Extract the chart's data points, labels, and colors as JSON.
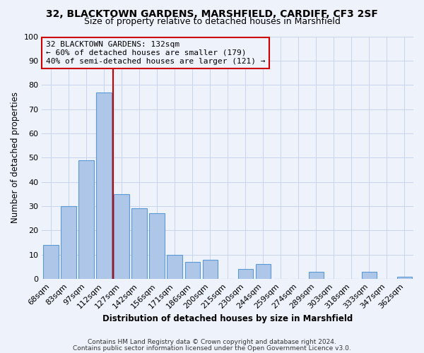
{
  "title1": "32, BLACKTOWN GARDENS, MARSHFIELD, CARDIFF, CF3 2SF",
  "title2": "Size of property relative to detached houses in Marshfield",
  "xlabel": "Distribution of detached houses by size in Marshfield",
  "ylabel": "Number of detached properties",
  "categories": [
    "68sqm",
    "83sqm",
    "97sqm",
    "112sqm",
    "127sqm",
    "142sqm",
    "156sqm",
    "171sqm",
    "186sqm",
    "200sqm",
    "215sqm",
    "230sqm",
    "244sqm",
    "259sqm",
    "274sqm",
    "289sqm",
    "303sqm",
    "318sqm",
    "333sqm",
    "347sqm",
    "362sqm"
  ],
  "values": [
    14,
    30,
    49,
    77,
    35,
    29,
    27,
    10,
    7,
    8,
    0,
    4,
    6,
    0,
    0,
    3,
    0,
    0,
    3,
    0,
    1
  ],
  "bar_color": "#aec6e8",
  "bar_edge_color": "#5b9bd5",
  "bg_color": "#eef2fb",
  "grid_color": "#c8d4ee",
  "marker_line_color": "#cc0000",
  "annotation_line0": "32 BLACKTOWN GARDENS: 132sqm",
  "annotation_line1": "← 60% of detached houses are smaller (179)",
  "annotation_line2": "40% of semi-detached houses are larger (121) →",
  "annotation_box_edge": "#cc0000",
  "ylim": [
    0,
    100
  ],
  "footer1": "Contains HM Land Registry data © Crown copyright and database right 2024.",
  "footer2": "Contains public sector information licensed under the Open Government Licence v3.0."
}
